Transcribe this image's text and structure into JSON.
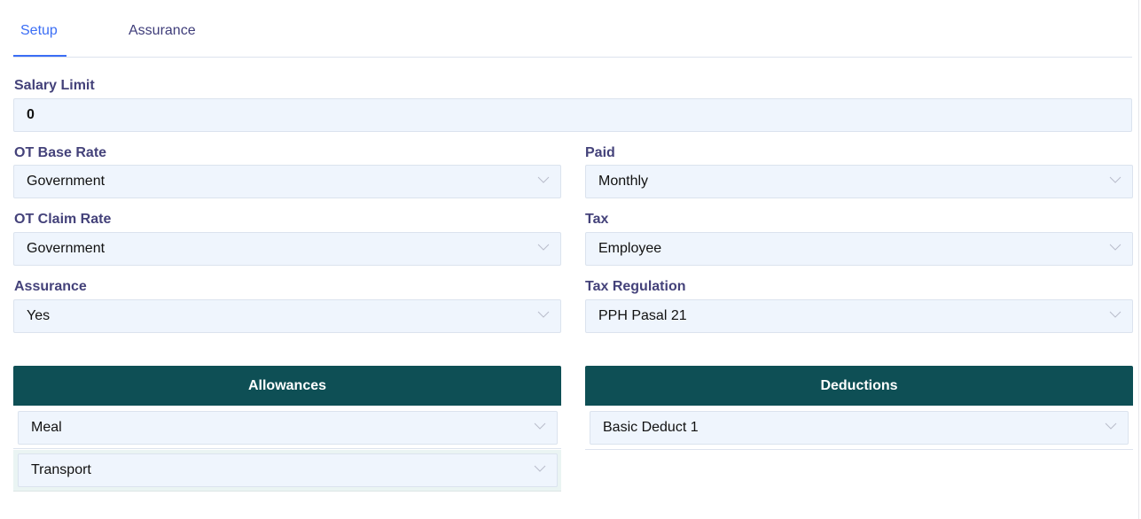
{
  "tabs": [
    {
      "label": "Setup",
      "active": true
    },
    {
      "label": "Assurance",
      "active": false
    }
  ],
  "form": {
    "salary_limit": {
      "label": "Salary Limit",
      "value": "0"
    },
    "ot_base_rate": {
      "label": "OT Base Rate",
      "value": "Government"
    },
    "paid": {
      "label": "Paid",
      "value": "Monthly"
    },
    "ot_claim_rate": {
      "label": "OT Claim Rate",
      "value": "Government"
    },
    "tax": {
      "label": "Tax",
      "value": "Employee"
    },
    "assurance": {
      "label": "Assurance",
      "value": "Yes"
    },
    "tax_regulation": {
      "label": "Tax Regulation",
      "value": "PPH Pasal 21"
    }
  },
  "allowances": {
    "title": "Allowances",
    "items": [
      "Meal",
      "Transport"
    ]
  },
  "deductions": {
    "title": "Deductions",
    "items": [
      "Basic Deduct 1"
    ]
  },
  "colors": {
    "accent": "#3b6ef5",
    "header": "#0e4f55",
    "label": "#44427a",
    "field_bg": "#eff5fd"
  }
}
